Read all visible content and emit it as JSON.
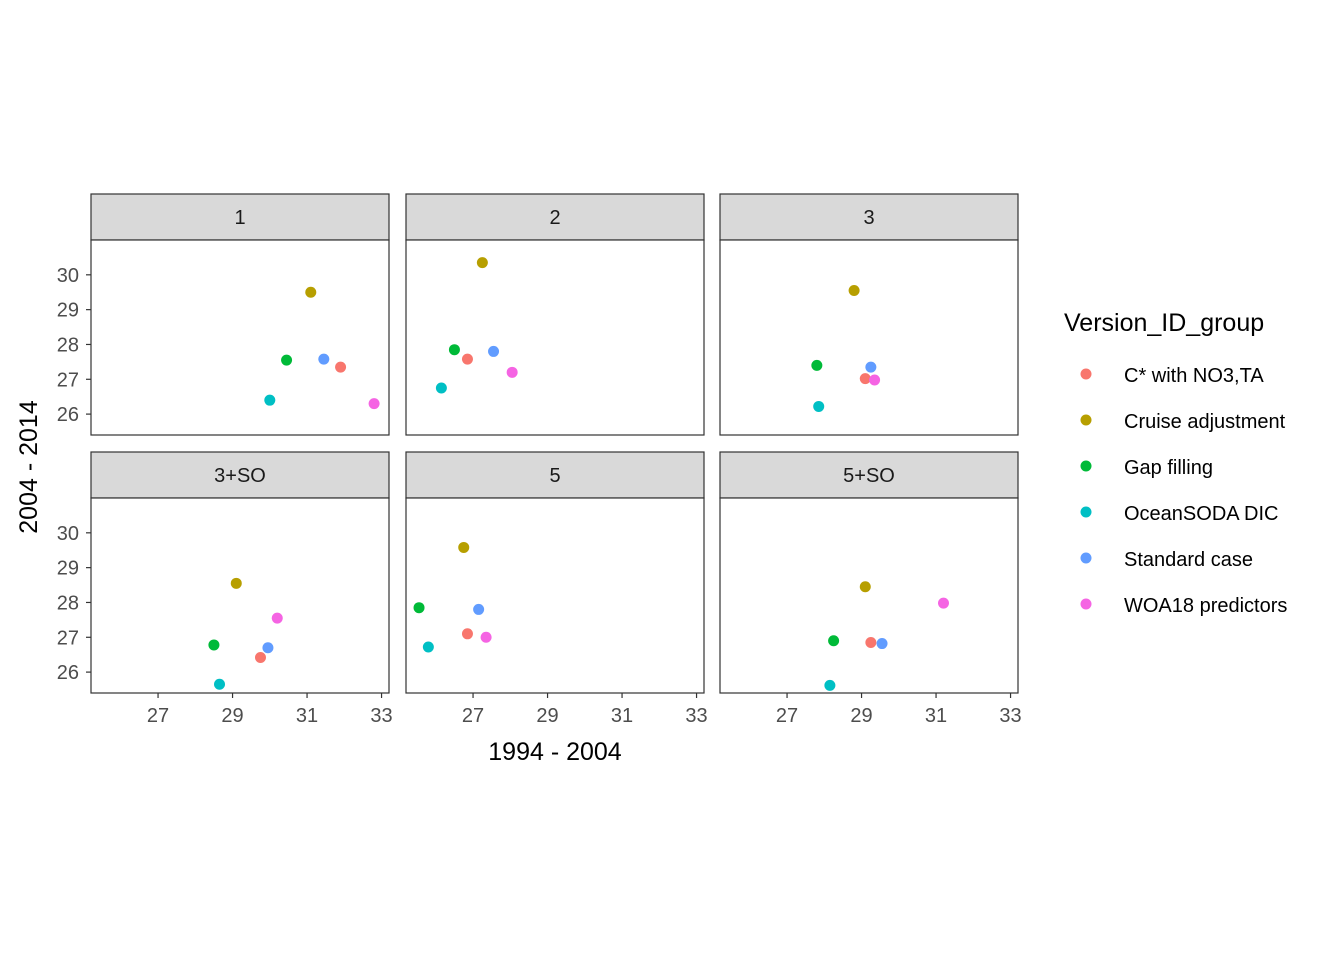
{
  "chart_data": {
    "type": "scatter",
    "facet_by": "Version_ID_group",
    "xlabel": "1994 - 2004",
    "ylabel": "2004 - 2014",
    "xlim": [
      25.2,
      33.2
    ],
    "ylim": [
      25.4,
      31.0
    ],
    "xticks": [
      27,
      29,
      31,
      33
    ],
    "yticks": [
      26,
      27,
      28,
      29,
      30
    ],
    "grid": false,
    "legend": {
      "title": "Version_ID_group",
      "position": "right",
      "entries": [
        {
          "label": "C* with NO3,TA",
          "color": "#F8766D"
        },
        {
          "label": "Cruise adjustment",
          "color": "#B79F00"
        },
        {
          "label": "Gap filling",
          "color": "#00BA38"
        },
        {
          "label": "OceanSODA DIC",
          "color": "#00BFC4"
        },
        {
          "label": "Standard case",
          "color": "#619CFF"
        },
        {
          "label": "WOA18 predictors",
          "color": "#F564E3"
        }
      ]
    },
    "panels": [
      {
        "label": "1",
        "points": [
          {
            "series": "C* with NO3,TA",
            "x": 31.9,
            "y": 27.35
          },
          {
            "series": "Cruise adjustment",
            "x": 31.1,
            "y": 29.5
          },
          {
            "series": "Gap filling",
            "x": 30.45,
            "y": 27.55
          },
          {
            "series": "OceanSODA DIC",
            "x": 30.0,
            "y": 26.4
          },
          {
            "series": "Standard case",
            "x": 31.45,
            "y": 27.58
          },
          {
            "series": "WOA18 predictors",
            "x": 32.8,
            "y": 26.3
          }
        ]
      },
      {
        "label": "2",
        "points": [
          {
            "series": "C* with NO3,TA",
            "x": 26.85,
            "y": 27.58
          },
          {
            "series": "Cruise adjustment",
            "x": 27.25,
            "y": 30.35
          },
          {
            "series": "Gap filling",
            "x": 26.5,
            "y": 27.85
          },
          {
            "series": "OceanSODA DIC",
            "x": 26.15,
            "y": 26.75
          },
          {
            "series": "Standard case",
            "x": 27.55,
            "y": 27.8
          },
          {
            "series": "WOA18 predictors",
            "x": 28.05,
            "y": 27.2
          }
        ]
      },
      {
        "label": "3",
        "points": [
          {
            "series": "C* with NO3,TA",
            "x": 29.1,
            "y": 27.02
          },
          {
            "series": "Cruise adjustment",
            "x": 28.8,
            "y": 29.55
          },
          {
            "series": "Gap filling",
            "x": 27.8,
            "y": 27.4
          },
          {
            "series": "OceanSODA DIC",
            "x": 27.85,
            "y": 26.22
          },
          {
            "series": "Standard case",
            "x": 29.25,
            "y": 27.35
          },
          {
            "series": "WOA18 predictors",
            "x": 29.35,
            "y": 26.98
          }
        ]
      },
      {
        "label": "3+SO",
        "points": [
          {
            "series": "C* with NO3,TA",
            "x": 29.75,
            "y": 26.42
          },
          {
            "series": "Cruise adjustment",
            "x": 29.1,
            "y": 28.55
          },
          {
            "series": "Gap filling",
            "x": 28.5,
            "y": 26.78
          },
          {
            "series": "OceanSODA DIC",
            "x": 28.65,
            "y": 25.65
          },
          {
            "series": "Standard case",
            "x": 29.95,
            "y": 26.7
          },
          {
            "series": "WOA18 predictors",
            "x": 30.2,
            "y": 27.55
          }
        ]
      },
      {
        "label": "5",
        "points": [
          {
            "series": "C* with NO3,TA",
            "x": 26.85,
            "y": 27.1
          },
          {
            "series": "Cruise adjustment",
            "x": 26.75,
            "y": 29.58
          },
          {
            "series": "Gap filling",
            "x": 25.55,
            "y": 27.85
          },
          {
            "series": "OceanSODA DIC",
            "x": 25.8,
            "y": 26.72
          },
          {
            "series": "Standard case",
            "x": 27.15,
            "y": 27.8
          },
          {
            "series": "WOA18 predictors",
            "x": 27.35,
            "y": 27.0
          }
        ]
      },
      {
        "label": "5+SO",
        "points": [
          {
            "series": "C* with NO3,TA",
            "x": 29.25,
            "y": 26.85
          },
          {
            "series": "Cruise adjustment",
            "x": 29.1,
            "y": 28.45
          },
          {
            "series": "Gap filling",
            "x": 28.25,
            "y": 26.9
          },
          {
            "series": "OceanSODA DIC",
            "x": 28.15,
            "y": 25.62
          },
          {
            "series": "Standard case",
            "x": 29.55,
            "y": 26.82
          },
          {
            "series": "WOA18 predictors",
            "x": 31.2,
            "y": 27.98
          }
        ]
      }
    ]
  }
}
